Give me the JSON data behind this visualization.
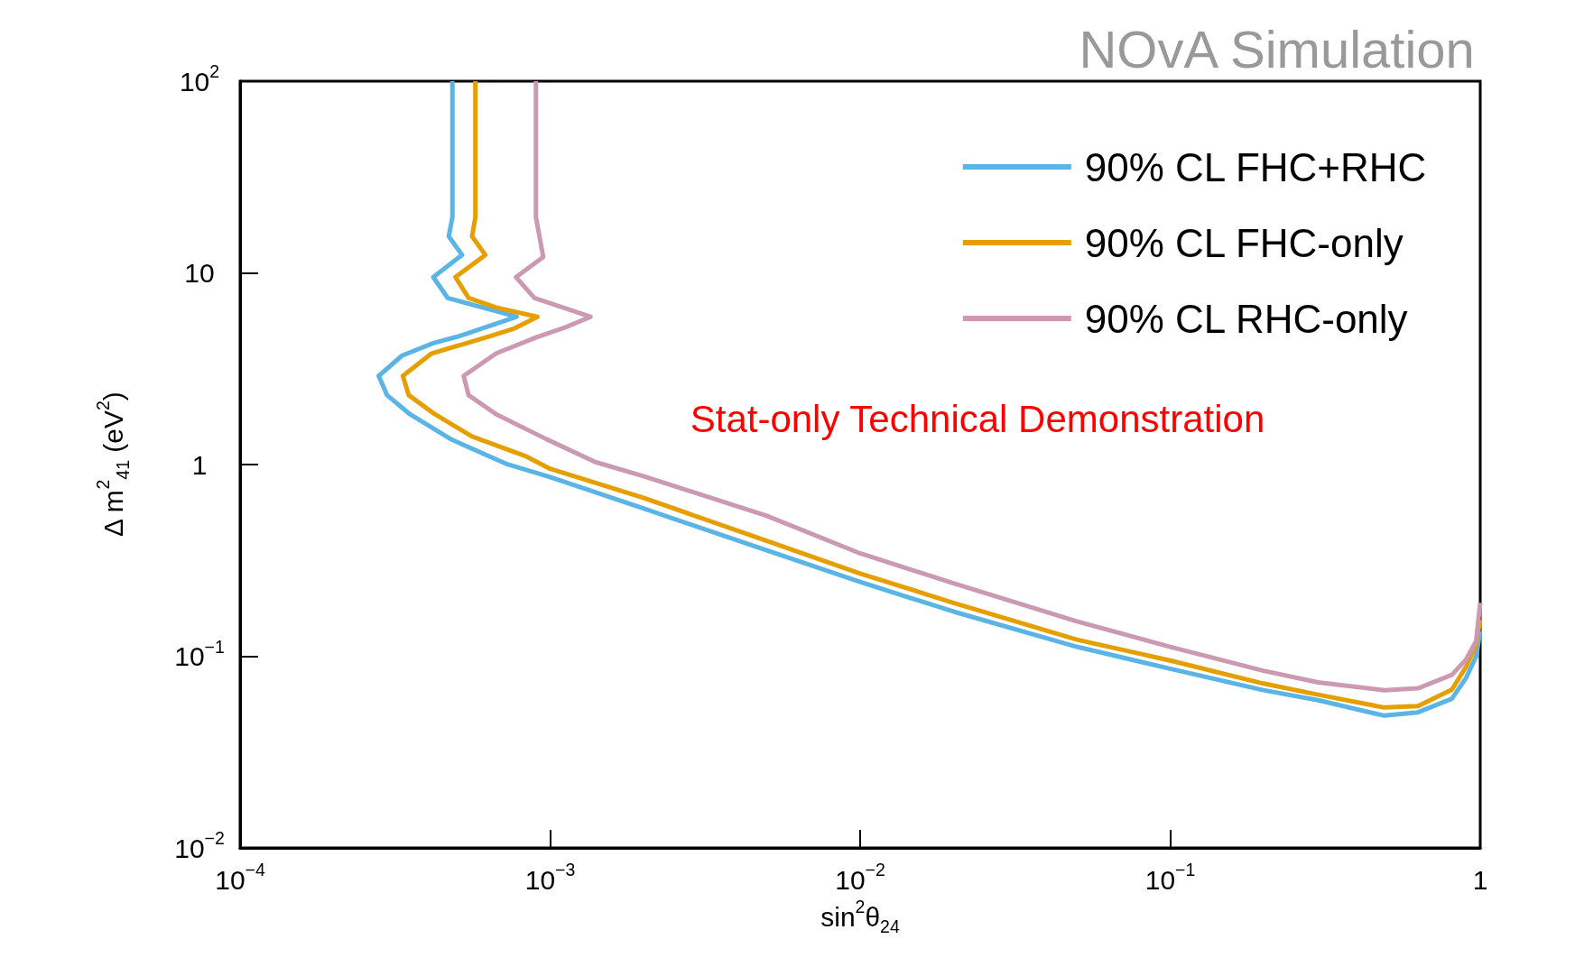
{
  "chart_data": {
    "type": "line",
    "title": "NOvA Simulation",
    "xlabel": "sin$^{2}$θ$_{24}$",
    "ylabel": "Δ m$^{2}$$_{41}$ (eV$^{2}$)",
    "log": "xy",
    "legend": "top right",
    "grid": false,
    "line_style": "solid",
    "marker": "none",
    "xlim": [
      0.0001,
      1
    ],
    "ylim": [
      0.01,
      100
    ],
    "xticks": [
      {
        "value": 0.0001,
        "label": "10$^{−4}$"
      },
      {
        "value": 0.001,
        "label": "10$^{−3}$"
      },
      {
        "value": 0.01,
        "label": "10$^{−2}$"
      },
      {
        "value": 0.1,
        "label": "10$^{−1}$"
      },
      1
    ],
    "yticks": [
      {
        "value": 0.01,
        "label": "10$^{−2}$"
      },
      {
        "value": 0.1,
        "label": "10$^{−1}$"
      },
      1,
      10,
      {
        "value": 100,
        "label": "10$^{2}$"
      }
    ],
    "annotations": [
      "Stat-only Technical Demonstration"
    ],
    "series": [
      {
        "name": "90% CL FHC+RHC",
        "color": "#5ab4e5",
        "x": [
          0.000484,
          0.000484,
          0.000471,
          0.00052,
          0.00042,
          0.000467,
          0.00078,
          0.000515,
          0.00042,
          0.000333,
          0.00028,
          0.000298,
          0.000353,
          0.000481,
          0.00072,
          0.001,
          0.002,
          0.005,
          0.01,
          0.02,
          0.05,
          0.1,
          0.2,
          0.3,
          0.49,
          0.63,
          0.81,
          0.9,
          0.97,
          1
        ],
        "values": [
          100,
          19.5,
          15.5,
          12.4,
          9.5,
          7.4,
          5.9,
          4.7,
          4.3,
          3.7,
          2.9,
          2.3,
          1.83,
          1.35,
          1.01,
          0.86,
          0.59,
          0.357,
          0.244,
          0.171,
          0.112,
          0.086,
          0.0665,
          0.059,
          0.049,
          0.051,
          0.06,
          0.077,
          0.1,
          0.135
        ]
      },
      {
        "name": "90% CL FHC-only",
        "color": "#e69f00",
        "x": [
          0.000574,
          0.000574,
          0.00056,
          0.000618,
          0.000495,
          0.000546,
          0.00067,
          0.00091,
          0.00076,
          0.00062,
          0.000415,
          0.000335,
          0.00035,
          0.000425,
          0.00056,
          0.00084,
          0.001,
          0.002,
          0.005,
          0.01,
          0.02,
          0.05,
          0.1,
          0.2,
          0.3,
          0.49,
          0.63,
          0.81,
          0.9,
          0.97,
          1
        ],
        "values": [
          100,
          19.5,
          15.5,
          12.4,
          9.5,
          7.4,
          6.6,
          5.9,
          5.1,
          4.6,
          3.8,
          2.9,
          2.3,
          1.83,
          1.4,
          1.1,
          0.95,
          0.67,
          0.4,
          0.27,
          0.19,
          0.122,
          0.095,
          0.072,
          0.063,
          0.054,
          0.055,
          0.067,
          0.088,
          0.115,
          0.155
        ]
      },
      {
        "name": "90% CL RHC-only",
        "color": "#cc99b3",
        "x": [
          0.0009,
          0.0009,
          0.00095,
          0.000776,
          0.00089,
          0.00135,
          0.00112,
          0.0009,
          0.00067,
          0.000526,
          0.000546,
          0.00067,
          0.00097,
          0.0014,
          0.002,
          0.005,
          0.01,
          0.02,
          0.05,
          0.1,
          0.2,
          0.3,
          0.49,
          0.63,
          0.81,
          0.9,
          0.97,
          1
        ],
        "values": [
          100,
          19.5,
          12.1,
          9.5,
          7.4,
          5.9,
          5.2,
          4.6,
          3.8,
          2.9,
          2.3,
          1.83,
          1.36,
          1.03,
          0.87,
          0.54,
          0.344,
          0.24,
          0.152,
          0.112,
          0.084,
          0.073,
          0.0665,
          0.068,
          0.08,
          0.096,
          0.12,
          0.19
        ]
      }
    ]
  }
}
